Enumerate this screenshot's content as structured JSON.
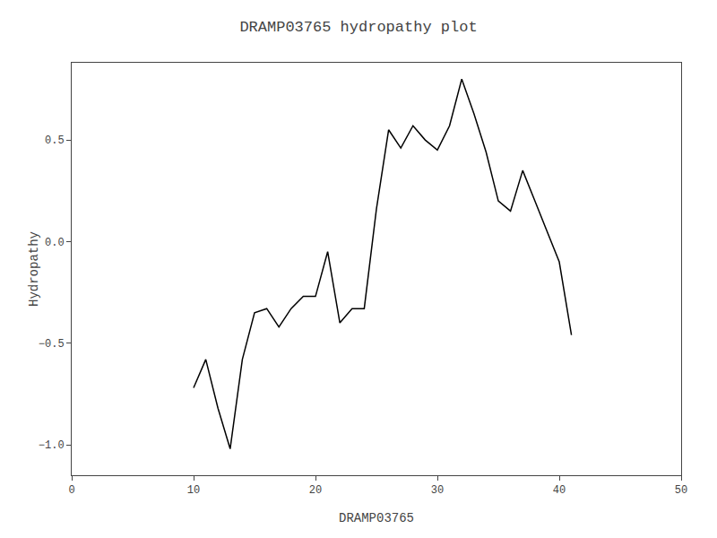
{
  "chart_data": {
    "type": "line",
    "title": "DRAMP03765 hydropathy plot",
    "xlabel": "DRAMP03765",
    "ylabel": "Hydropathy",
    "x": [
      10,
      11,
      12,
      13,
      14,
      15,
      16,
      17,
      18,
      19,
      20,
      21,
      22,
      23,
      24,
      25,
      26,
      27,
      28,
      29,
      30,
      31,
      32,
      33,
      34,
      35,
      36,
      37,
      38,
      39,
      40,
      41
    ],
    "values": [
      -0.72,
      -0.58,
      -0.82,
      -1.02,
      -0.58,
      -0.35,
      -0.33,
      -0.42,
      -0.33,
      -0.27,
      -0.27,
      -0.05,
      -0.4,
      -0.33,
      -0.33,
      0.16,
      0.55,
      0.46,
      0.57,
      0.5,
      0.45,
      0.57,
      0.8,
      0.63,
      0.44,
      0.2,
      0.15,
      0.35,
      0.2,
      0.05,
      -0.1,
      -0.46
    ],
    "color": "black",
    "xlim": [
      0,
      50
    ],
    "ylim": [
      -1.15,
      0.88
    ],
    "xticks": [
      0,
      10,
      20,
      30,
      40,
      50
    ],
    "yticks": [
      {
        "value": -1.0,
        "label": "−1.0"
      },
      {
        "value": -0.5,
        "label": "−0.5"
      },
      {
        "value": 0.0,
        "label": "0.0"
      },
      0.5
    ],
    "grid": false
  }
}
